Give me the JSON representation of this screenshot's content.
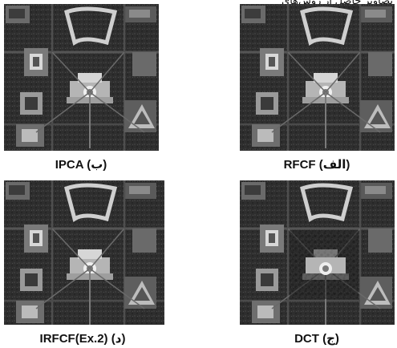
{
  "figure": {
    "top_partial_caption": "تصاویر حاصل از روش‌های",
    "panels": [
      {
        "id": "b",
        "method": "IPCA",
        "letter": "ب",
        "variant": "ipca"
      },
      {
        "id": "alef",
        "method": "RFCF",
        "letter": "الف",
        "variant": "rfcf"
      },
      {
        "id": "d",
        "method": "IRFCF(Ex.2)",
        "letter": "د",
        "variant": "irfcf"
      },
      {
        "id": "j",
        "method": "DCT",
        "letter": "ج",
        "variant": "dct"
      }
    ]
  }
}
